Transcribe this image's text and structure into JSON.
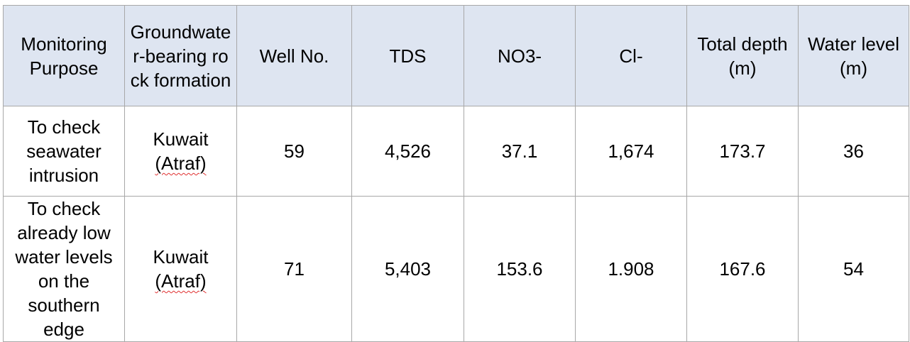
{
  "table": {
    "headers": [
      "Monitoring Purpose",
      "Groundwater-bearing rock formation",
      "Well No.",
      "TDS",
      "NO3-",
      "Cl-",
      "Total depth (m)",
      "Water level (m)"
    ],
    "rows": [
      {
        "purpose": "To check seawater intrusion",
        "formation_name": "Kuwait",
        "formation_sub": "(Atraf)",
        "well_no": "59",
        "tds": "4,526",
        "no3": "37.1",
        "cl": "1,674",
        "total_depth": "173.7",
        "water_level": "36"
      },
      {
        "purpose": "To check already low water levels on the southern edge",
        "formation_name": "Kuwait",
        "formation_sub": "(Atraf)",
        "well_no": "71",
        "tds": "5,403",
        "no3": "153.6",
        "cl": "1.908",
        "total_depth": "167.6",
        "water_level": "54"
      }
    ]
  }
}
